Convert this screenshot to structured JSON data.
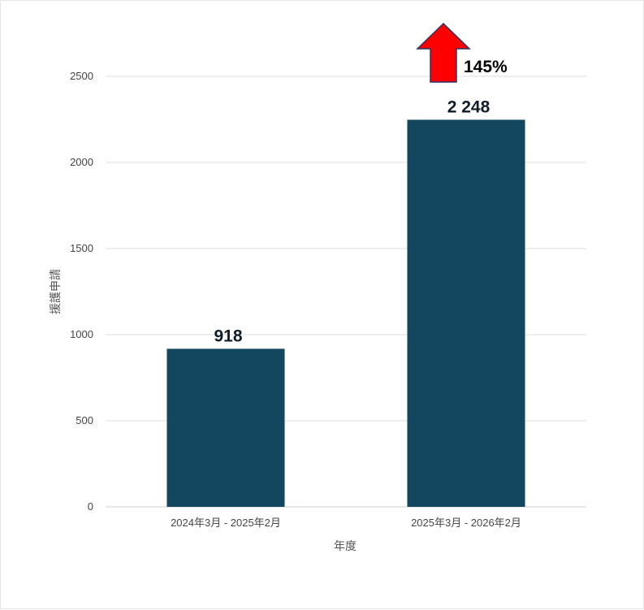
{
  "chart_data": {
    "type": "bar",
    "categories": [
      "2024年3月 - 2025年2月",
      "2025年3月 - 2026年2月"
    ],
    "values": [
      918,
      2248
    ],
    "data_labels": [
      "918",
      "2 248"
    ],
    "title": "",
    "xlabel": "年度",
    "ylabel": "援護申請",
    "ylim": [
      0,
      2500
    ],
    "yticks": [
      0,
      500,
      1000,
      1500,
      2000,
      2500
    ],
    "grid": true,
    "legend": "none",
    "bar_color": "#12475f",
    "annotation": {
      "text": "145%",
      "arrow": "up",
      "arrow_color": "#ff0000",
      "arrow_stroke": "#2b3566"
    }
  }
}
